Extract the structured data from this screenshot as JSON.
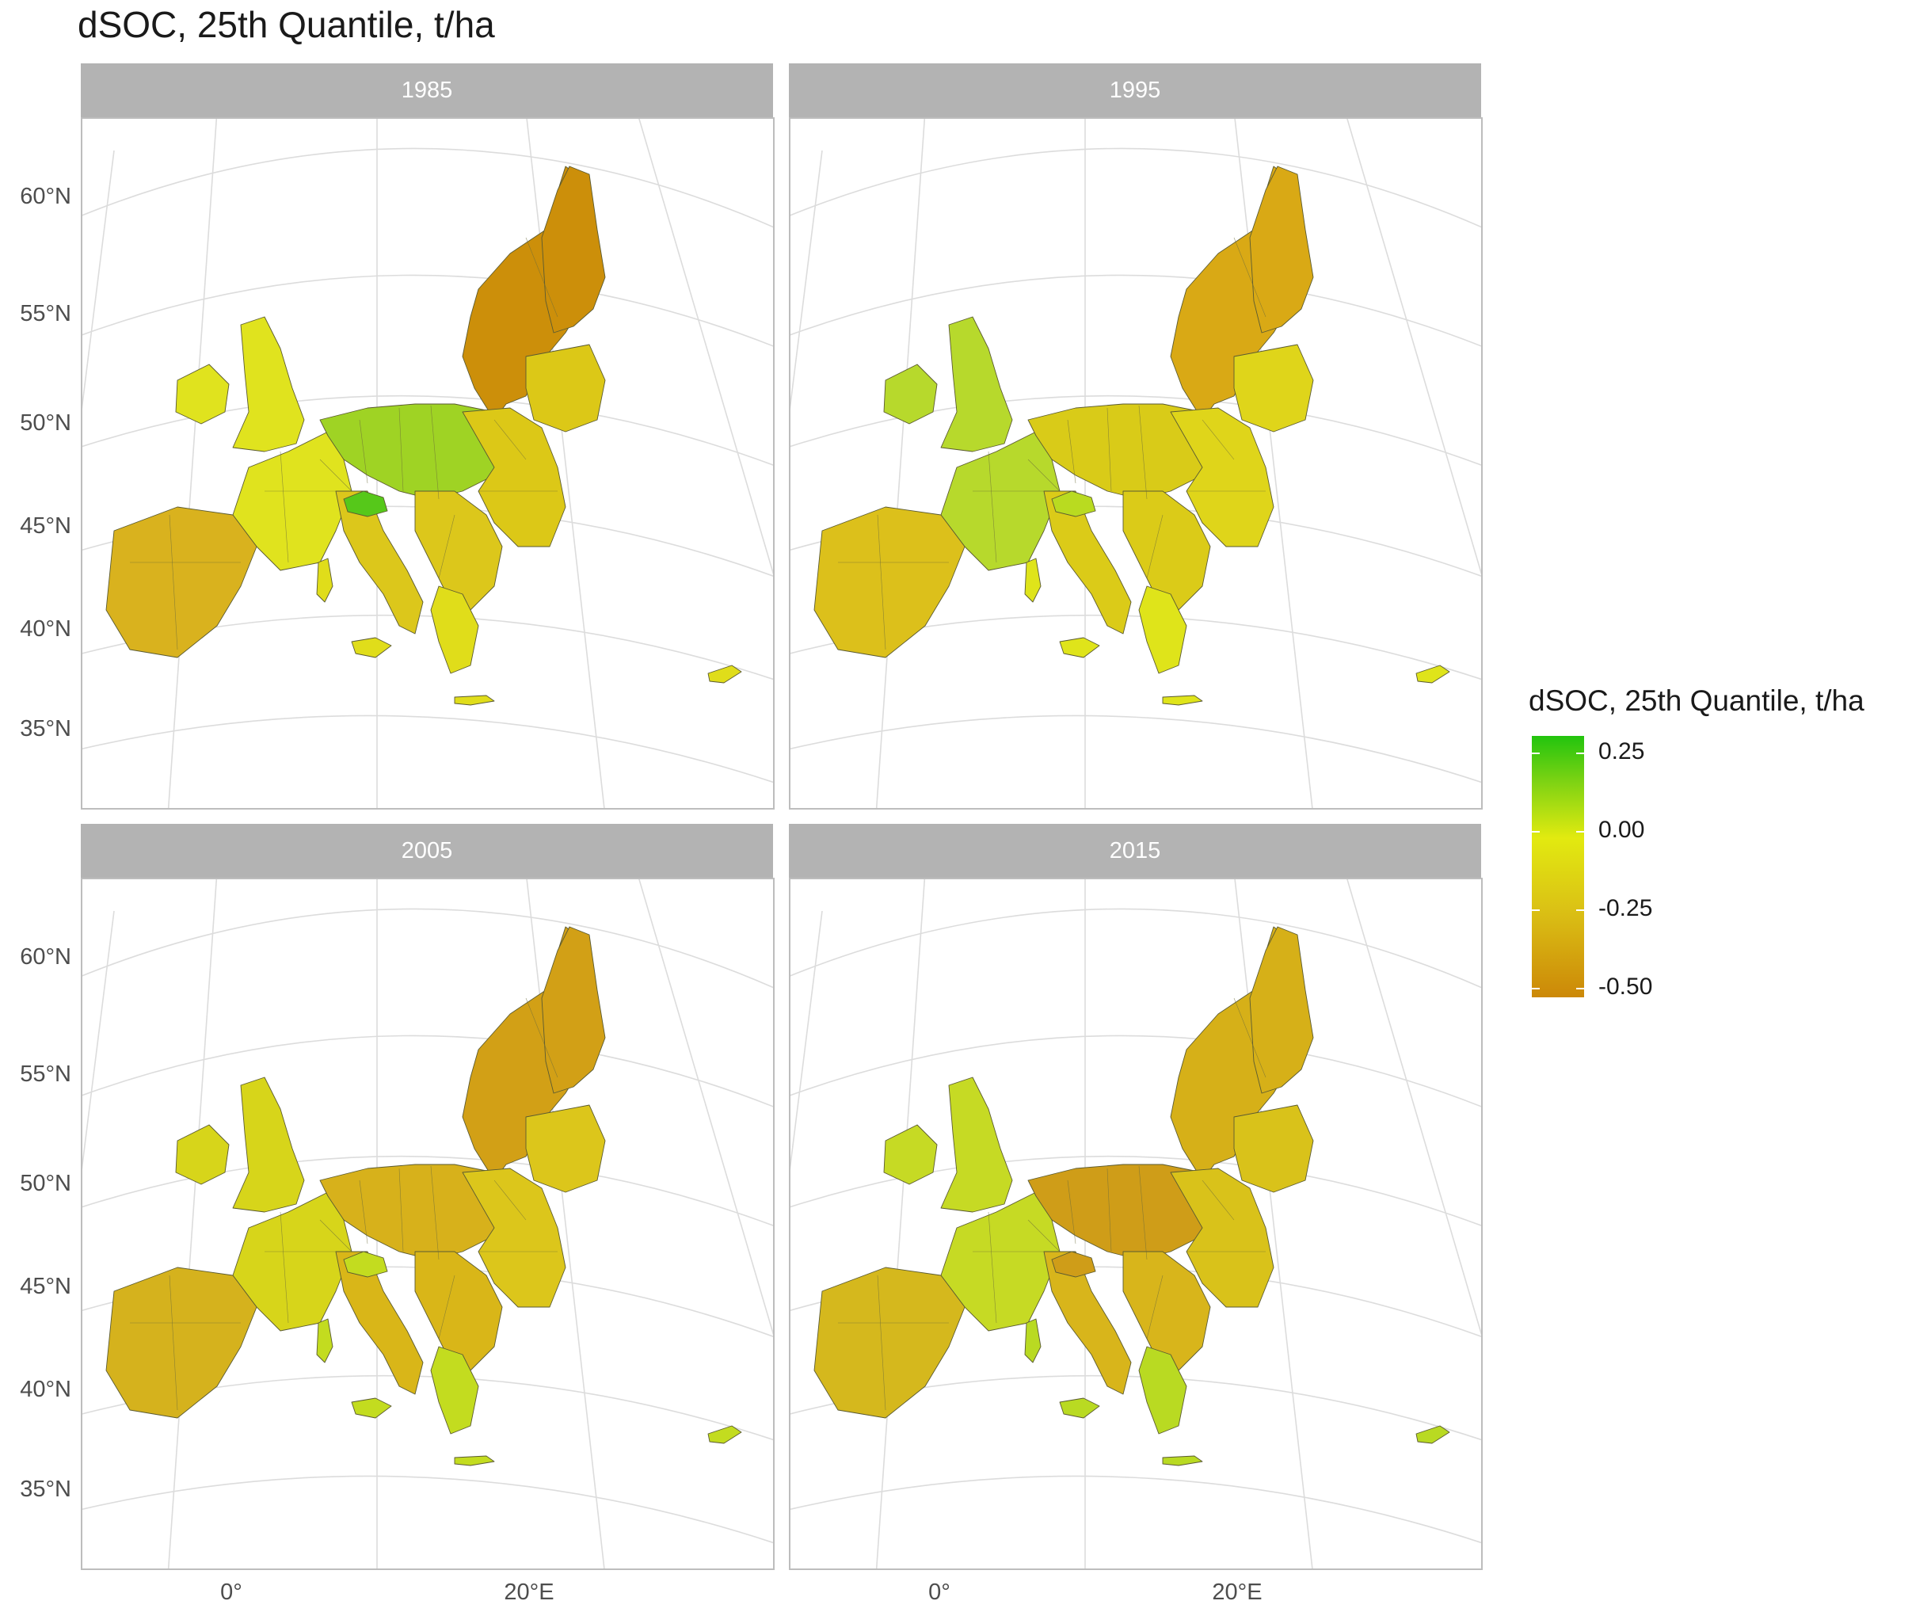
{
  "title": "dSOC, 25th Quantile, t/ha",
  "panels": [
    {
      "year": "1985",
      "palette": {
        "north": "#cc8f0a",
        "west": "#e0e31e",
        "central": "#9fd324",
        "east": "#dcc817",
        "iberia": "#d9b21e",
        "south": "#dcc71b",
        "islands": "#e0dd1a",
        "hot": "#56c81a"
      }
    },
    {
      "year": "1995",
      "palette": {
        "north": "#d9a915",
        "west": "#b7d92c",
        "central": "#d9cb18",
        "east": "#dfd51a",
        "iberia": "#dcc01b",
        "south": "#dbcb18",
        "islands": "#dfe41a",
        "hot": "#b9db20"
      }
    },
    {
      "year": "2005",
      "palette": {
        "north": "#d2a016",
        "west": "#d7d51a",
        "central": "#d7b11b",
        "east": "#dcc61b",
        "iberia": "#d5b21d",
        "south": "#d9b618",
        "islands": "#c3dc1f",
        "hot": "#c3dc1f"
      }
    },
    {
      "year": "2015",
      "palette": {
        "north": "#d6b018",
        "west": "#c6da24",
        "central": "#cf9d18",
        "east": "#d9c21a",
        "iberia": "#d5b81d",
        "south": "#d8b51b",
        "islands": "#b9da22",
        "hot": "#cf9d18"
      }
    }
  ],
  "y_axis": {
    "ticks": [
      "60°N",
      "55°N",
      "50°N",
      "45°N",
      "40°N",
      "35°N"
    ]
  },
  "x_axis": {
    "ticks": [
      "0°",
      "20°E"
    ]
  },
  "legend": {
    "title": "dSOC, 25th Quantile, t/ha",
    "breaks": [
      "0.25",
      "0.00",
      "-0.25",
      "-0.50"
    ],
    "range": [
      -0.55,
      0.3
    ],
    "colors": [
      "#22c40e",
      "#80d313",
      "#e2ea10",
      "#dbc215",
      "#cc8808"
    ]
  }
}
